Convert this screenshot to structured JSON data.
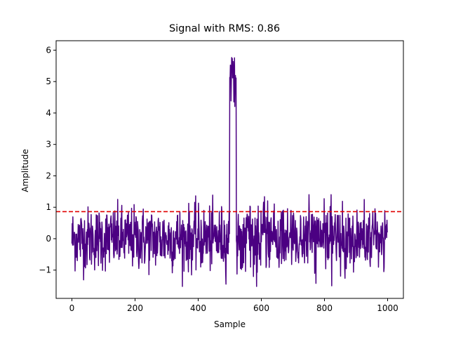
{
  "chart_data": {
    "type": "line",
    "title": "Signal with RMS: 0.86",
    "xlabel": "Sample",
    "ylabel": "Amplitude",
    "xlim": [
      -50,
      1050
    ],
    "ylim": [
      -1.9,
      6.3
    ],
    "xticks": [
      0,
      200,
      400,
      600,
      800,
      1000
    ],
    "xtick_labels": [
      "0",
      "200",
      "400",
      "600",
      "800",
      "1000"
    ],
    "yticks": [
      -1,
      0,
      1,
      2,
      3,
      4,
      5,
      6
    ],
    "ytick_labels": [
      "−1",
      "0",
      "1",
      "2",
      "3",
      "4",
      "5",
      "6"
    ],
    "grid": false,
    "legend": null,
    "series": [
      {
        "name": "signal",
        "color": "#4b0082",
        "description": "Gaussian noise (std ~0.5) over samples 0-999 with a spike of amplitude ~4.2-5.9 between samples ~500-520",
        "n_points": 1000,
        "noise_std": 0.5,
        "spike_range": [
          500,
          520
        ],
        "spike_min": 4.2,
        "spike_max": 5.88,
        "global_min": -1.52,
        "global_max": 5.88
      },
      {
        "name": "RMS",
        "type": "hline",
        "value": 0.86,
        "color": "#e00000",
        "style": "dashed"
      }
    ]
  }
}
